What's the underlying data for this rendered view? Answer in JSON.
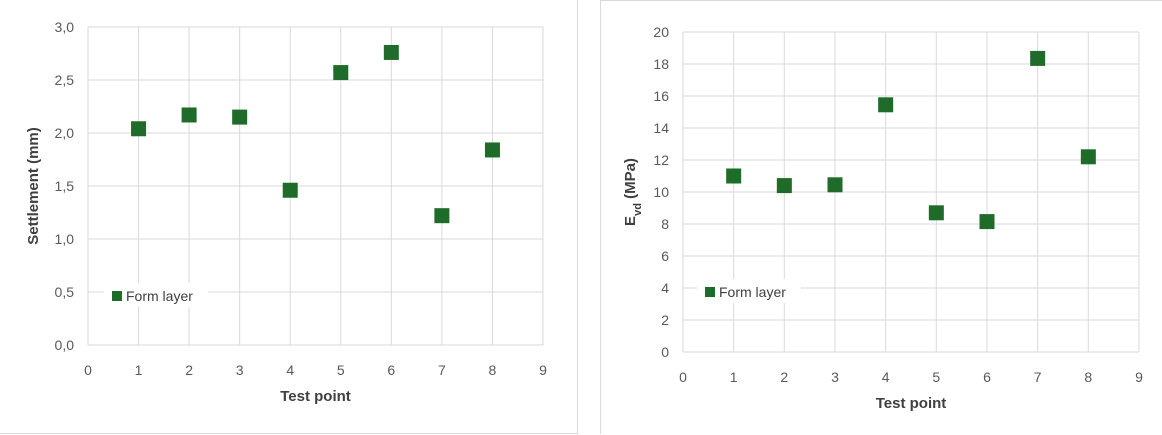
{
  "chart_data": [
    {
      "type": "scatter",
      "title": "",
      "xlabel": "Test point",
      "ylabel": "Settlement (mm)",
      "xlim": [
        0,
        9
      ],
      "ylim": [
        0,
        3
      ],
      "x_ticks": [
        "0",
        "1",
        "2",
        "3",
        "4",
        "5",
        "6",
        "7",
        "8",
        "9"
      ],
      "y_ticks": [
        "0,0",
        "0,5",
        "1,0",
        "1,5",
        "2,0",
        "2,5",
        "3,0"
      ],
      "grid": true,
      "legend_position": "bottom-left",
      "series": [
        {
          "name": "Form layer",
          "color": "#1e6b2a",
          "marker": "square",
          "x": [
            1,
            2,
            3,
            4,
            5,
            6,
            7,
            8
          ],
          "y": [
            2.04,
            2.17,
            2.15,
            1.46,
            2.57,
            2.76,
            1.22,
            1.84
          ]
        }
      ]
    },
    {
      "type": "scatter",
      "title": "",
      "xlabel": "Test point",
      "ylabel_main": "E",
      "ylabel_sub": "vd",
      "ylabel_unit": " (MPa)",
      "xlim": [
        0,
        9
      ],
      "ylim": [
        0,
        20
      ],
      "x_ticks": [
        "0",
        "1",
        "2",
        "3",
        "4",
        "5",
        "6",
        "7",
        "8",
        "9"
      ],
      "y_ticks": [
        "0",
        "2",
        "4",
        "6",
        "8",
        "10",
        "12",
        "14",
        "16",
        "18",
        "20"
      ],
      "grid": true,
      "legend_position": "bottom-left",
      "series": [
        {
          "name": "Form layer",
          "color": "#1e6b2a",
          "marker": "square",
          "x": [
            1,
            2,
            3,
            4,
            5,
            6,
            7,
            8
          ],
          "y": [
            11.0,
            10.4,
            10.45,
            15.45,
            8.7,
            8.15,
            18.35,
            12.2
          ]
        }
      ]
    }
  ]
}
